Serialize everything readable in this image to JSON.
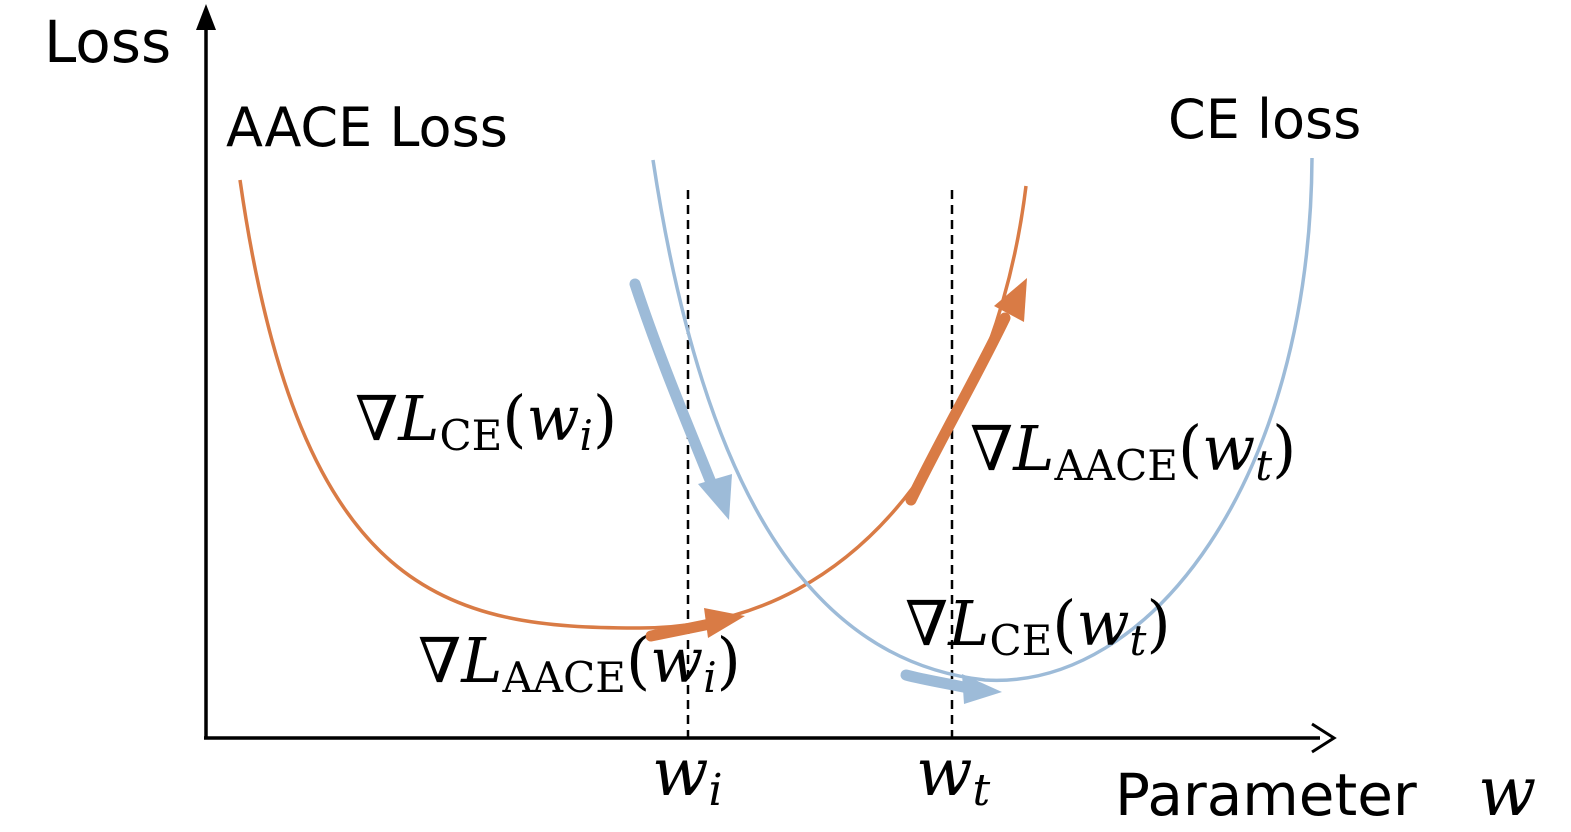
{
  "axes": {
    "y_label": "Loss",
    "x_label": "Parameter",
    "x_var": "w"
  },
  "curves": {
    "aace": {
      "label": "AACE Loss",
      "color": "#d97b45"
    },
    "ce": {
      "label": "CE loss",
      "color": "#9dbbd8"
    }
  },
  "markers": {
    "wi": {
      "base": "w",
      "sub": "i"
    },
    "wt": {
      "base": "w",
      "sub": "t"
    }
  },
  "gradients": {
    "ce_wi": {
      "op": "∇",
      "L": "L",
      "sub": "CE",
      "arg": "w",
      "arg_sub": "i"
    },
    "aace_wt": {
      "op": "∇",
      "L": "L",
      "sub": "AACE",
      "arg": "w",
      "arg_sub": "t"
    },
    "aace_wi": {
      "op": "∇",
      "L": "L",
      "sub": "AACE",
      "arg": "w",
      "arg_sub": "i"
    },
    "ce_wt": {
      "op": "∇",
      "L": "L",
      "sub": "CE",
      "arg": "w",
      "arg_sub": "t"
    }
  }
}
